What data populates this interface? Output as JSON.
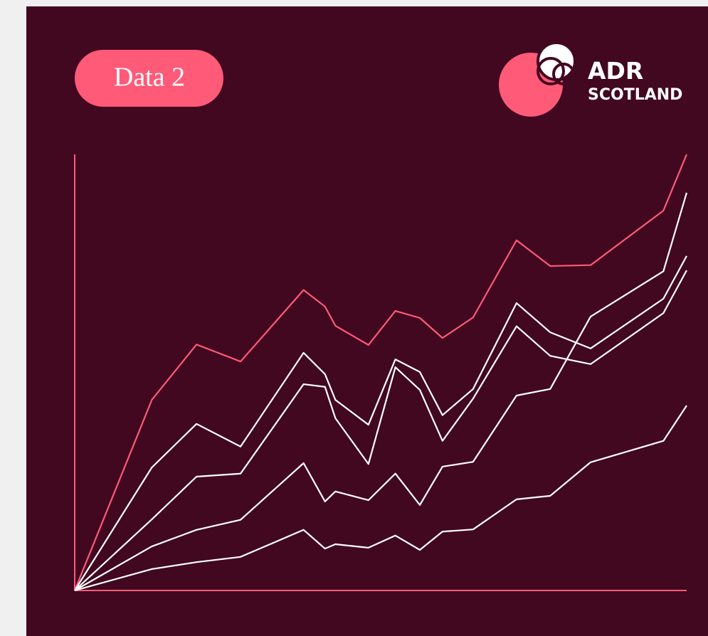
{
  "badge": "Data 2",
  "logo": {
    "line1": "ADR",
    "line2": "SCOTLAND"
  },
  "chart_data": {
    "type": "line",
    "x": [
      0,
      12.6,
      19.9,
      27.1,
      37.4,
      40.9,
      42.6,
      48,
      52.4,
      56.4,
      60.1,
      65.1,
      72.2,
      77.7,
      84.3,
      96.2,
      100
    ],
    "xlim": [
      0,
      100
    ],
    "ylim": [
      0,
      100
    ],
    "series": [
      {
        "color": "#ff5a78",
        "values": [
          0,
          43.7,
          56.4,
          52.5,
          68.9,
          65.1,
          60.7,
          56.3,
          64.1,
          62.5,
          57.9,
          62.6,
          80.3,
          74.4,
          74.6,
          87.1,
          100
        ]
      },
      {
        "color": "#ffffff",
        "values": [
          0,
          28.2,
          38.2,
          33.0,
          54.5,
          49.6,
          43.7,
          38.0,
          53.0,
          50.1,
          40.2,
          46.2,
          65.9,
          59.2,
          55.5,
          66.9,
          76.7
        ]
      },
      {
        "color": "#ffffff",
        "values": [
          0,
          16.3,
          26.1,
          26.8,
          47.3,
          46.7,
          39.5,
          29.0,
          51.2,
          46.0,
          34.3,
          44.0,
          60.6,
          53.8,
          51.9,
          63.6,
          73.4
        ]
      },
      {
        "color": "#ffffff",
        "values": [
          0,
          10.1,
          13.9,
          16.2,
          29.2,
          20.4,
          22.7,
          20.7,
          26.8,
          19.6,
          28.4,
          29.5,
          44.7,
          46.2,
          62.8,
          73.2,
          91.2
        ]
      },
      {
        "color": "#ffffff",
        "values": [
          0,
          4.9,
          6.5,
          7.7,
          13.9,
          9.6,
          10.6,
          9.8,
          12.6,
          9.3,
          13.5,
          14.0,
          20.9,
          21.7,
          29.4,
          34.3,
          42.4
        ]
      }
    ]
  }
}
